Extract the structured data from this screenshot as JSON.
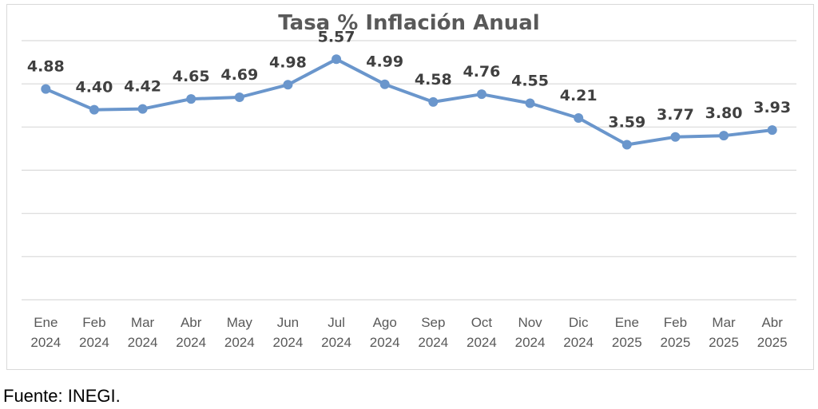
{
  "chart_data": {
    "type": "line",
    "title": "Tasa % Inflación Anual",
    "categories": [
      [
        "Ene",
        "2024"
      ],
      [
        "Feb",
        "2024"
      ],
      [
        "Mar",
        "2024"
      ],
      [
        "Abr",
        "2024"
      ],
      [
        "May",
        "2024"
      ],
      [
        "Jun",
        "2024"
      ],
      [
        "Jul",
        "2024"
      ],
      [
        "Ago",
        "2024"
      ],
      [
        "Sep",
        "2024"
      ],
      [
        "Oct",
        "2024"
      ],
      [
        "Nov",
        "2024"
      ],
      [
        "Dic",
        "2024"
      ],
      [
        "Ene",
        "2025"
      ],
      [
        "Feb",
        "2025"
      ],
      [
        "Mar",
        "2025"
      ],
      [
        "Abr",
        "2025"
      ]
    ],
    "series": [
      {
        "values": [
          4.88,
          4.4,
          4.42,
          4.65,
          4.69,
          4.98,
          5.57,
          4.99,
          4.58,
          4.76,
          4.55,
          4.21,
          3.59,
          3.77,
          3.8,
          3.93
        ],
        "labels": [
          "4.88",
          "4.40",
          "4.42",
          "4.65",
          "4.69",
          "4.98",
          "5.57",
          "4.99",
          "4.58",
          "4.76",
          "4.55",
          "4.21",
          "3.59",
          "3.77",
          "3.80",
          "3.93"
        ]
      }
    ],
    "ylim": [
      0,
      6
    ],
    "grid": true,
    "legend": "none",
    "colors": {
      "line": "#6a96cc",
      "grid": "#d9d9d9"
    }
  },
  "footer": {
    "source": "Fuente: INEGI."
  }
}
